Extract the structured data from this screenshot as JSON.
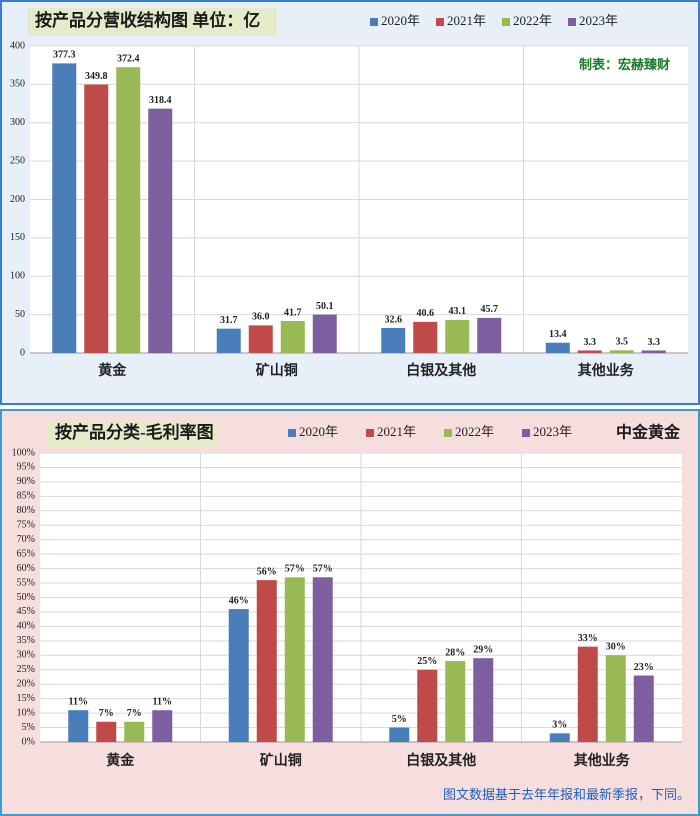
{
  "chart_data": [
    {
      "type": "bar",
      "title": "按产品分营收结构图 单位：亿",
      "annotation": "制表：宏赫臻财",
      "categories": [
        "黄金",
        "矿山铜",
        "白银及其他",
        "其他业务"
      ],
      "series": [
        {
          "name": "2020年",
          "color": "#4a7ebb",
          "values": [
            377.3,
            31.7,
            32.6,
            13.4
          ],
          "value_labels": [
            "377.3",
            "31.7",
            "32.6",
            "13.4"
          ]
        },
        {
          "name": "2021年",
          "color": "#be4b48",
          "values": [
            349.8,
            36.0,
            40.6,
            3.3
          ],
          "value_labels": [
            "349.8",
            "36.0",
            "40.6",
            "3.3"
          ]
        },
        {
          "name": "2022年",
          "color": "#98b954",
          "values": [
            372.4,
            41.7,
            43.1,
            3.5
          ],
          "value_labels": [
            "372.4",
            "41.7",
            "43.1",
            "3.5"
          ]
        },
        {
          "name": "2023年",
          "color": "#7d5fa0",
          "values": [
            318.4,
            50.1,
            45.7,
            3.3
          ],
          "value_labels": [
            "318.4",
            "50.1",
            "45.7",
            "3.3"
          ]
        }
      ],
      "ylim": [
        0,
        400
      ],
      "yticks": [
        0,
        50,
        100,
        150,
        200,
        250,
        300,
        350,
        400
      ],
      "grid": true
    },
    {
      "type": "bar",
      "title": "按产品分类-毛利率图",
      "annotation": "中金黄金",
      "footnote": "图文数据基于去年年报和最新季报，下同。",
      "categories": [
        "黄金",
        "矿山铜",
        "白银及其他",
        "其他业务"
      ],
      "series": [
        {
          "name": "2020年",
          "color": "#4a7ebb",
          "values": [
            11,
            46,
            5,
            3
          ],
          "value_labels": [
            "11%",
            "46%",
            "5%",
            "3%"
          ]
        },
        {
          "name": "2021年",
          "color": "#be4b48",
          "values": [
            7,
            56,
            25,
            33
          ],
          "value_labels": [
            "7%",
            "56%",
            "25%",
            "33%"
          ]
        },
        {
          "name": "2022年",
          "color": "#98b954",
          "values": [
            7,
            57,
            28,
            30
          ],
          "value_labels": [
            "7%",
            "57%",
            "28%",
            "30%"
          ]
        },
        {
          "name": "2023年",
          "color": "#7d5fa0",
          "values": [
            11,
            57,
            29,
            23
          ],
          "value_labels": [
            "11%",
            "57%",
            "29%",
            "23%"
          ]
        }
      ],
      "ylim": [
        0,
        100
      ],
      "yticks": [
        {
          "value": 0,
          "label": "0%"
        },
        {
          "value": 5,
          "label": "5%"
        },
        {
          "value": 10,
          "label": "10%"
        },
        {
          "value": 15,
          "label": "15%"
        },
        {
          "value": 20,
          "label": "20%"
        },
        {
          "value": 25,
          "label": "25%"
        },
        {
          "value": 30,
          "label": "30%"
        },
        {
          "value": 35,
          "label": "35%"
        },
        {
          "value": 40,
          "label": "40%"
        },
        {
          "value": 45,
          "label": "45%"
        },
        {
          "value": 50,
          "label": "50%"
        },
        {
          "value": 55,
          "label": "55%"
        },
        {
          "value": 60,
          "label": "60%"
        },
        {
          "value": 65,
          "label": "65%"
        },
        {
          "value": 70,
          "label": "70%"
        },
        {
          "value": 75,
          "label": "75%"
        },
        {
          "value": 80,
          "label": "80%"
        },
        {
          "value": 85,
          "label": "85%"
        },
        {
          "value": 90,
          "label": "90%"
        },
        {
          "value": 95,
          "label": "95%"
        },
        {
          "value": 100,
          "label": "100%"
        }
      ],
      "grid": true
    }
  ]
}
